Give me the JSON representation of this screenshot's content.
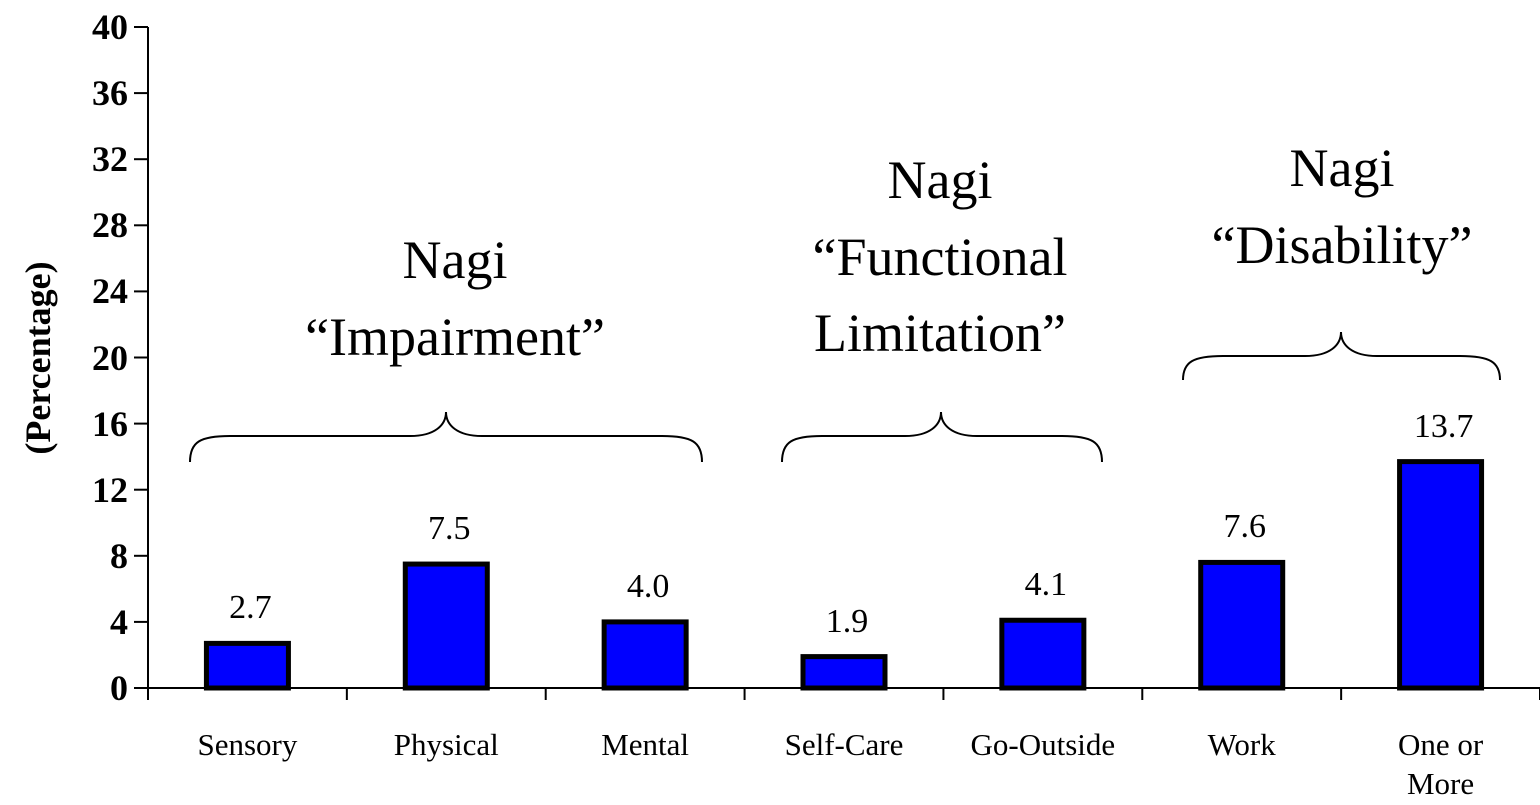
{
  "chart_data": {
    "type": "bar",
    "y_axis_label": "(Percentage)",
    "categories": [
      "Sensory",
      "Physical",
      "Mental",
      "Self-Care",
      "Go-Outside",
      "Work",
      "One or\nMore"
    ],
    "values": [
      2.7,
      7.5,
      4.0,
      1.9,
      4.1,
      7.6,
      13.7
    ],
    "value_labels": [
      "2.7",
      "7.5",
      "4.0",
      "1.9",
      "4.1",
      "7.6",
      "13.7"
    ],
    "color": "#0000ff",
    "ylim": [
      0,
      40
    ],
    "yticks": [
      0,
      4,
      8,
      12,
      16,
      20,
      24,
      28,
      32,
      36,
      40
    ],
    "annotations": [
      "Nagi\n“Impairment”",
      "Nagi\n“Functional\nLimitation”",
      "Nagi\n“Disability”"
    ]
  }
}
